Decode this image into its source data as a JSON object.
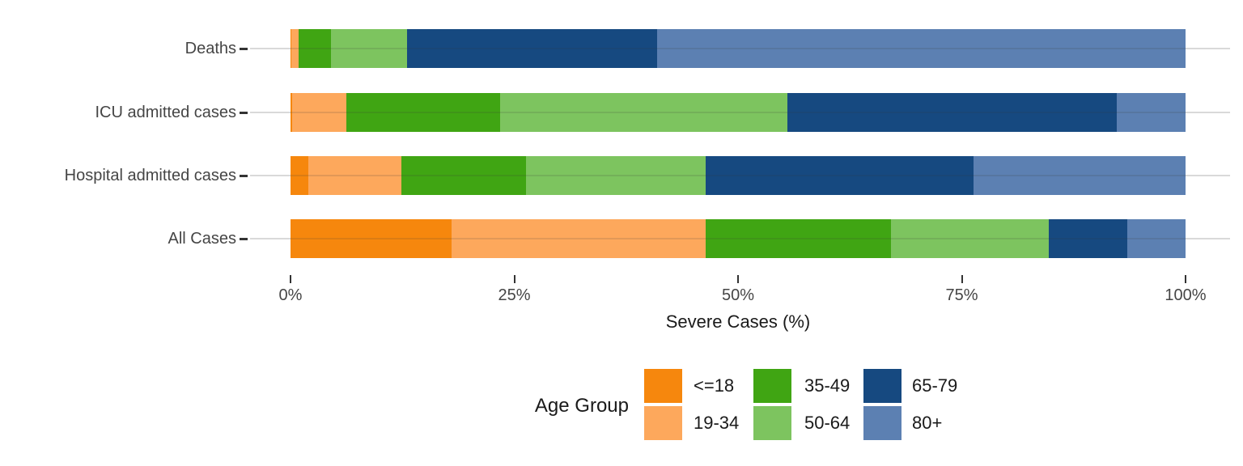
{
  "chart": {
    "rows": [
      {
        "label": "Deaths",
        "values": [
          0.1,
          0.8,
          3.6,
          8.5,
          28.0,
          59.0
        ]
      },
      {
        "label": "ICU admitted cases",
        "values": [
          0.2,
          6.0,
          17.2,
          32.1,
          36.8,
          7.7
        ]
      },
      {
        "label": "Hospital admitted cases",
        "values": [
          2.0,
          10.4,
          13.9,
          20.1,
          29.9,
          23.7
        ]
      },
      {
        "label": "All Cases",
        "values": [
          18.0,
          28.4,
          20.7,
          17.6,
          8.8,
          6.5
        ]
      }
    ],
    "age_groups": [
      {
        "label": "<=18",
        "color": "#F6870D"
      },
      {
        "label": "19-34",
        "color": "#FDA85C"
      },
      {
        "label": "35-49",
        "color": "#40A513"
      },
      {
        "label": "50-64",
        "color": "#7DC45F"
      },
      {
        "label": "65-79",
        "color": "#164980"
      },
      {
        "label": "80+",
        "color": "#5C80B2"
      }
    ],
    "x_ticks": [
      "0%",
      "25%",
      "50%",
      "75%",
      "100%"
    ],
    "xlabel": "Severe Cases (%)",
    "legend_title": "Age Group",
    "grid_color": "#d9d9d9",
    "text_color": "#454545"
  },
  "chart_data": {
    "type": "bar",
    "orientation": "horizontal",
    "stacked": true,
    "unit": "percent",
    "categories": [
      "Deaths",
      "ICU admitted cases",
      "Hospital admitted cases",
      "All Cases"
    ],
    "series": [
      {
        "name": "<=18",
        "color": "#F6870D",
        "values": [
          0.1,
          0.2,
          2.0,
          18.0
        ]
      },
      {
        "name": "19-34",
        "color": "#FDA85C",
        "values": [
          0.8,
          6.0,
          10.4,
          28.4
        ]
      },
      {
        "name": "35-49",
        "color": "#40A513",
        "values": [
          3.6,
          17.2,
          13.9,
          20.7
        ]
      },
      {
        "name": "50-64",
        "color": "#7DC45F",
        "values": [
          8.5,
          32.1,
          20.1,
          17.6
        ]
      },
      {
        "name": "65-79",
        "color": "#164980",
        "values": [
          28.0,
          36.8,
          29.9,
          8.8
        ]
      },
      {
        "name": "80+",
        "color": "#5C80B2",
        "values": [
          59.0,
          7.7,
          23.7,
          6.5
        ]
      }
    ],
    "title": "",
    "xlabel": "Severe Cases (%)",
    "ylabel": "",
    "xlim": [
      0,
      100
    ],
    "x_tick_labels": [
      "0%",
      "25%",
      "50%",
      "75%",
      "100%"
    ],
    "grid": "one horizontal gridline per category",
    "legend_title": "Age Group",
    "legend_position": "bottom-center, 3 columns x 2 rows"
  }
}
